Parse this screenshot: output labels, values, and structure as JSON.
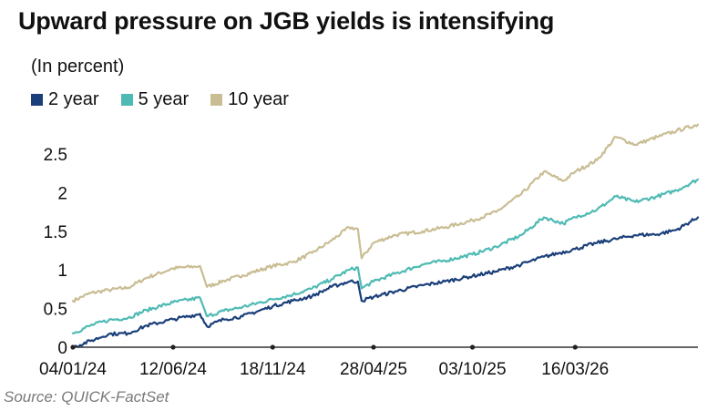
{
  "title": "Upward pressure on JGB yields is intensifying",
  "subtitle": "(In percent)",
  "source": "Source: QUICK-FactSet",
  "colors": {
    "two_year": "#1b3f7a",
    "five_year": "#4fbab4",
    "ten_year": "#c9bd93",
    "axis": "#333333"
  },
  "chart_data": {
    "type": "line",
    "title": "Upward pressure on JGB yields is intensifying",
    "ylabel": "",
    "xlabel": "",
    "ylim": [
      0,
      2.9
    ],
    "xlim": [
      "2024-01-04",
      "2026-09-28"
    ],
    "grid": false,
    "legend_position": "top-left",
    "yticks": [
      {
        "value": 0,
        "label": "0"
      },
      {
        "value": 0.5,
        "label": "0.5"
      },
      {
        "value": 1,
        "label": "1"
      },
      {
        "value": 1.5,
        "label": "1.5"
      },
      {
        "value": 2,
        "label": "2"
      },
      {
        "value": 2.5,
        "label": "2.5"
      }
    ],
    "xticks": [
      {
        "date": "2024-01-04",
        "label": "04/01/24"
      },
      {
        "date": "2024-06-12",
        "label": "12/06/24"
      },
      {
        "date": "2024-11-18",
        "label": "18/11/24"
      },
      {
        "date": "2025-04-28",
        "label": "28/04/25"
      },
      {
        "date": "2025-10-03",
        "label": "03/10/25"
      },
      {
        "date": "2026-03-16",
        "label": "16/03/26"
      }
    ],
    "series": [
      {
        "name": "2 year",
        "color": "#1b3f7a",
        "points": [
          [
            "2024-01-04",
            0.0
          ],
          [
            "2024-02-01",
            0.08
          ],
          [
            "2024-03-01",
            0.17
          ],
          [
            "2024-04-01",
            0.18
          ],
          [
            "2024-05-01",
            0.28
          ],
          [
            "2024-06-12",
            0.36
          ],
          [
            "2024-07-25",
            0.43
          ],
          [
            "2024-08-05",
            0.27
          ],
          [
            "2024-09-01",
            0.36
          ],
          [
            "2024-10-01",
            0.4
          ],
          [
            "2024-11-18",
            0.53
          ],
          [
            "2024-12-20",
            0.6
          ],
          [
            "2025-01-20",
            0.66
          ],
          [
            "2025-02-20",
            0.78
          ],
          [
            "2025-03-20",
            0.85
          ],
          [
            "2025-04-03",
            0.85
          ],
          [
            "2025-04-09",
            0.6
          ],
          [
            "2025-04-28",
            0.65
          ],
          [
            "2025-06-01",
            0.72
          ],
          [
            "2025-07-15",
            0.8
          ],
          [
            "2025-08-20",
            0.85
          ],
          [
            "2025-10-03",
            0.92
          ],
          [
            "2025-11-10",
            0.98
          ],
          [
            "2025-12-20",
            1.07
          ],
          [
            "2026-01-25",
            1.17
          ],
          [
            "2026-03-16",
            1.27
          ],
          [
            "2026-04-20",
            1.35
          ],
          [
            "2026-05-20",
            1.4
          ],
          [
            "2026-06-20",
            1.45
          ],
          [
            "2026-07-25",
            1.46
          ],
          [
            "2026-08-25",
            1.52
          ],
          [
            "2026-09-28",
            1.68
          ]
        ]
      },
      {
        "name": "5 year",
        "color": "#4fbab4",
        "points": [
          [
            "2024-01-04",
            0.18
          ],
          [
            "2024-02-01",
            0.28
          ],
          [
            "2024-03-01",
            0.35
          ],
          [
            "2024-04-01",
            0.38
          ],
          [
            "2024-05-01",
            0.48
          ],
          [
            "2024-06-12",
            0.58
          ],
          [
            "2024-07-25",
            0.64
          ],
          [
            "2024-08-05",
            0.4
          ],
          [
            "2024-09-01",
            0.47
          ],
          [
            "2024-10-01",
            0.52
          ],
          [
            "2024-11-18",
            0.62
          ],
          [
            "2024-12-20",
            0.68
          ],
          [
            "2025-01-20",
            0.76
          ],
          [
            "2025-02-20",
            0.88
          ],
          [
            "2025-03-20",
            1.0
          ],
          [
            "2025-04-03",
            1.03
          ],
          [
            "2025-04-09",
            0.76
          ],
          [
            "2025-04-28",
            0.85
          ],
          [
            "2025-06-01",
            0.95
          ],
          [
            "2025-07-15",
            1.07
          ],
          [
            "2025-08-20",
            1.12
          ],
          [
            "2025-10-03",
            1.2
          ],
          [
            "2025-11-10",
            1.3
          ],
          [
            "2025-12-20",
            1.45
          ],
          [
            "2026-01-25",
            1.68
          ],
          [
            "2026-02-25",
            1.6
          ],
          [
            "2026-03-16",
            1.68
          ],
          [
            "2026-04-20",
            1.78
          ],
          [
            "2026-05-20",
            1.95
          ],
          [
            "2026-06-20",
            1.88
          ],
          [
            "2026-07-25",
            1.95
          ],
          [
            "2026-08-25",
            2.03
          ],
          [
            "2026-09-28",
            2.17
          ]
        ]
      },
      {
        "name": "10 year",
        "color": "#c9bd93",
        "points": [
          [
            "2024-01-04",
            0.6
          ],
          [
            "2024-02-01",
            0.7
          ],
          [
            "2024-03-01",
            0.74
          ],
          [
            "2024-04-01",
            0.77
          ],
          [
            "2024-05-01",
            0.9
          ],
          [
            "2024-06-12",
            1.02
          ],
          [
            "2024-07-25",
            1.05
          ],
          [
            "2024-08-05",
            0.78
          ],
          [
            "2024-09-01",
            0.86
          ],
          [
            "2024-10-01",
            0.93
          ],
          [
            "2024-11-18",
            1.05
          ],
          [
            "2024-12-20",
            1.1
          ],
          [
            "2025-01-20",
            1.22
          ],
          [
            "2025-02-20",
            1.38
          ],
          [
            "2025-03-20",
            1.55
          ],
          [
            "2025-04-03",
            1.53
          ],
          [
            "2025-04-09",
            1.15
          ],
          [
            "2025-04-28",
            1.35
          ],
          [
            "2025-06-01",
            1.45
          ],
          [
            "2025-07-15",
            1.5
          ],
          [
            "2025-08-20",
            1.55
          ],
          [
            "2025-10-03",
            1.64
          ],
          [
            "2025-11-10",
            1.75
          ],
          [
            "2025-12-20",
            1.98
          ],
          [
            "2026-01-25",
            2.27
          ],
          [
            "2026-02-25",
            2.15
          ],
          [
            "2026-03-16",
            2.27
          ],
          [
            "2026-04-20",
            2.42
          ],
          [
            "2026-05-20",
            2.72
          ],
          [
            "2026-06-20",
            2.62
          ],
          [
            "2026-07-25",
            2.72
          ],
          [
            "2026-08-25",
            2.8
          ],
          [
            "2026-09-28",
            2.88
          ]
        ]
      }
    ]
  }
}
